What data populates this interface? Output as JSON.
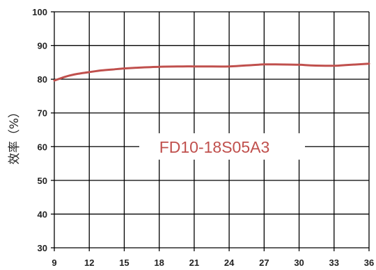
{
  "chart_data": {
    "type": "line",
    "ylabel": "效率（%）",
    "xlabel": "",
    "annotation": "FD10-18S05A3",
    "x_ticks": [
      "9",
      "12",
      "15",
      "18",
      "21",
      "24",
      "27",
      "30",
      "33",
      "36"
    ],
    "y_ticks": [
      "30",
      "40",
      "50",
      "60",
      "70",
      "80",
      "90",
      "100"
    ],
    "xlim": [
      9,
      36
    ],
    "ylim": [
      30,
      100
    ],
    "grid": true,
    "series": [
      {
        "x": [
          9,
          10,
          11,
          12,
          13,
          14,
          15,
          16,
          18,
          20,
          21,
          22,
          24,
          26,
          27,
          28,
          30,
          31,
          33,
          34,
          36
        ],
        "values": [
          79.6,
          80.8,
          81.6,
          82.1,
          82.6,
          82.9,
          83.2,
          83.4,
          83.7,
          83.8,
          83.8,
          83.8,
          83.8,
          84.2,
          84.4,
          84.4,
          84.3,
          84.1,
          84.0,
          84.2,
          84.6
        ]
      }
    ],
    "colors": {
      "line": "#c0504d",
      "grid": "#000000",
      "annotation": "#c0504d"
    }
  }
}
